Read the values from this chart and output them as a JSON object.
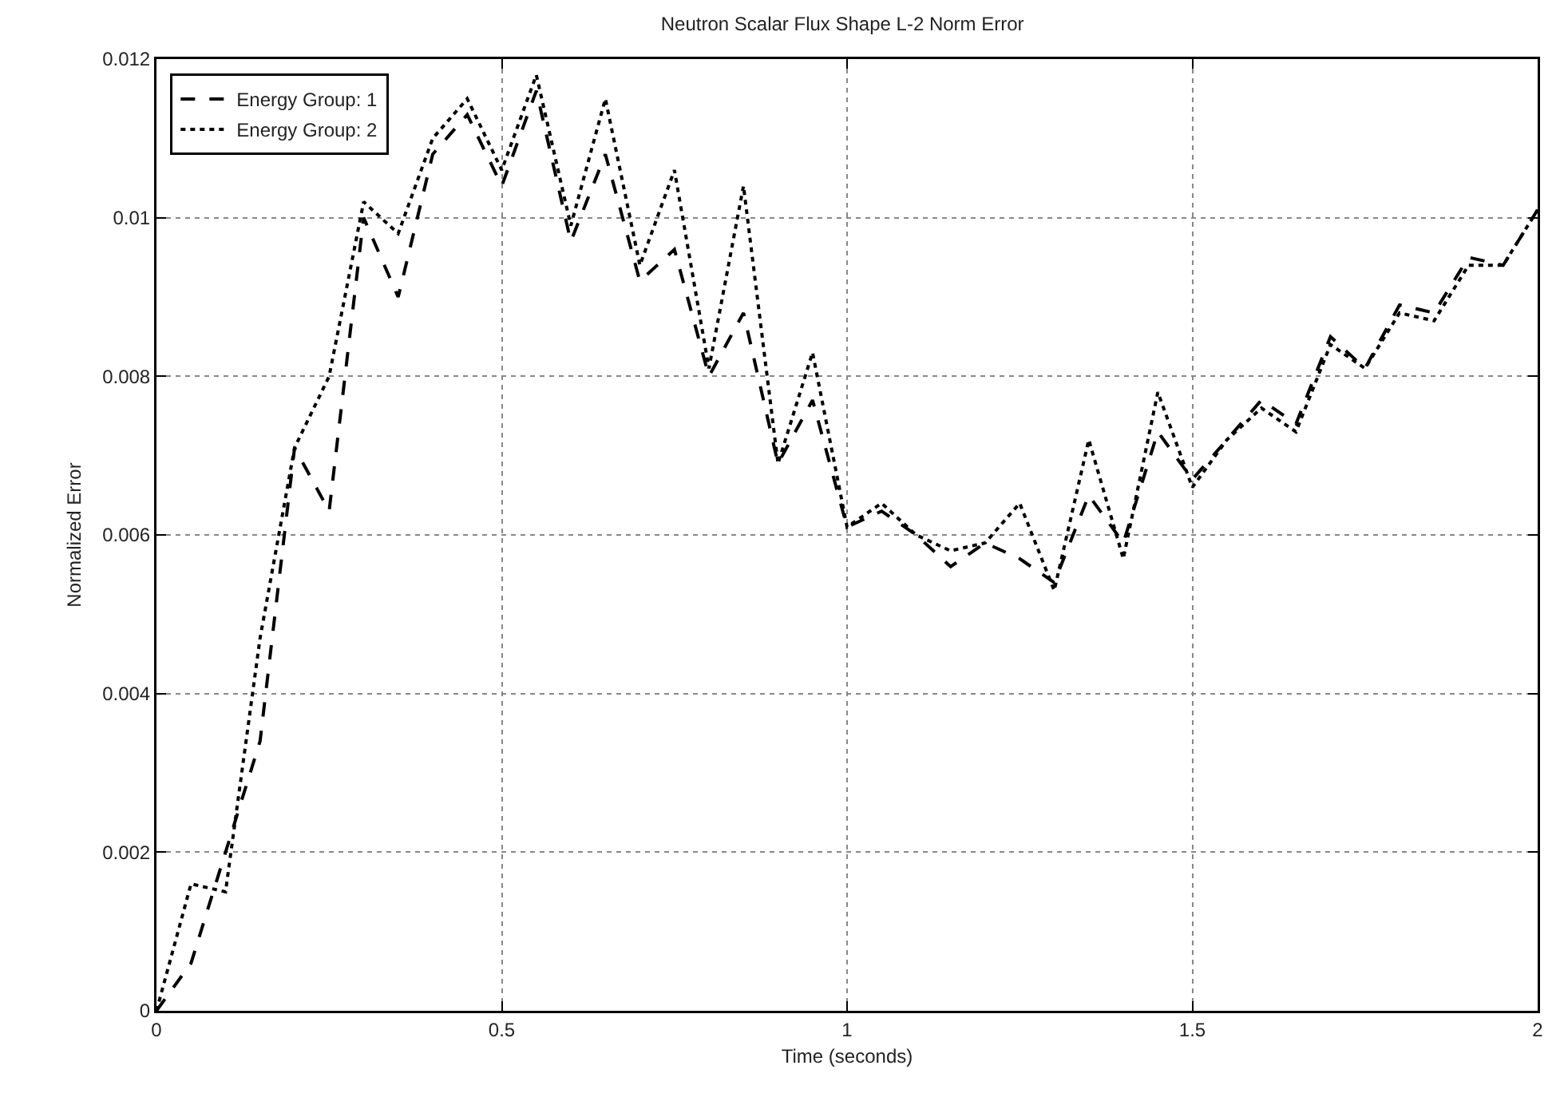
{
  "chart_data": {
    "type": "line",
    "title": "Neutron Scalar Flux Shape L-2 Norm Error",
    "xlabel": "Time (seconds)",
    "ylabel": "Normalized Error",
    "x": [
      0,
      0.05,
      0.1,
      0.15,
      0.2,
      0.25,
      0.3,
      0.35,
      0.4,
      0.45,
      0.5,
      0.55,
      0.6,
      0.65,
      0.7,
      0.75,
      0.8,
      0.85,
      0.9,
      0.95,
      1,
      1.05,
      1.1,
      1.15,
      1.2,
      1.25,
      1.3,
      1.35,
      1.4,
      1.45,
      1.5,
      1.55,
      1.6,
      1.65,
      1.7,
      1.75,
      1.8,
      1.85,
      1.9,
      1.95,
      2
    ],
    "series": [
      {
        "name": "Energy Group: 1",
        "color": "#000000",
        "line_style": "dashed",
        "values": [
          0,
          0.0006,
          0.002,
          0.0034,
          0.0071,
          0.0063,
          0.01,
          0.009,
          0.0108,
          0.0113,
          0.0104,
          0.0116,
          0.0097,
          0.0108,
          0.0092,
          0.0096,
          0.008,
          0.0088,
          0.0069,
          0.0077,
          0.0061,
          0.0063,
          0.006,
          0.0056,
          0.0059,
          0.0057,
          0.0054,
          0.0065,
          0.0059,
          0.0073,
          0.0067,
          0.0072,
          0.0077,
          0.0074,
          0.0085,
          0.0081,
          0.0089,
          0.0088,
          0.0095,
          0.0094,
          0.0101
        ]
      },
      {
        "name": "Energy Group: 2",
        "color": "#000000",
        "line_style": "dotted",
        "values": [
          0,
          0.0016,
          0.0015,
          0.0047,
          0.0071,
          0.008,
          0.0102,
          0.0098,
          0.011,
          0.0115,
          0.0106,
          0.0118,
          0.0099,
          0.0115,
          0.0094,
          0.0106,
          0.0081,
          0.0104,
          0.0069,
          0.0083,
          0.0061,
          0.0064,
          0.006,
          0.0058,
          0.0059,
          0.0064,
          0.0053,
          0.0072,
          0.0057,
          0.0078,
          0.0066,
          0.0072,
          0.0076,
          0.0073,
          0.0084,
          0.0081,
          0.0088,
          0.0087,
          0.0094,
          0.0094,
          0.0101
        ]
      }
    ],
    "xlim": [
      0,
      2
    ],
    "xticks": [
      0,
      0.5,
      1,
      1.5,
      2
    ],
    "ylim": [
      0,
      0.012
    ],
    "yticks": [
      0,
      0.002,
      0.004,
      0.006,
      0.008,
      0.01,
      0.012
    ],
    "grid": true,
    "legend": "top left"
  }
}
